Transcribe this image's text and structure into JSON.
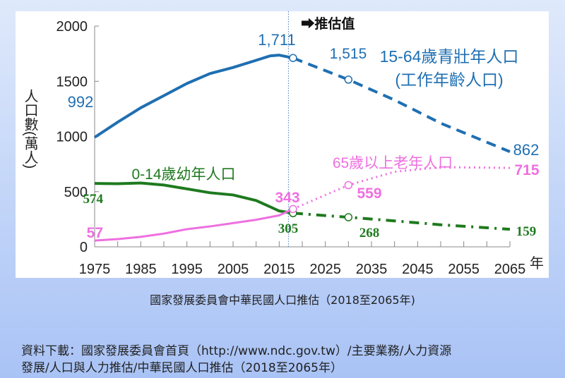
{
  "chart_data": {
    "type": "line",
    "title": "",
    "xlabel": "年",
    "ylabel": "人口數(萬人)",
    "xlim": [
      1975,
      2065
    ],
    "ylim": [
      0,
      2000
    ],
    "x_ticks": [
      "1975",
      "1985",
      "1995",
      "2005",
      "2015",
      "2025",
      "2035",
      "2045",
      "2055",
      "2065"
    ],
    "y_ticks": [
      "0",
      "500",
      "1000",
      "1500",
      "2000"
    ],
    "projection_start": 2017,
    "projection_label": "➡推估值",
    "series": [
      {
        "name": "15-64歲青壯年人口",
        "name2": "(工作年齡人口)",
        "color": "#1f6fb2",
        "x": [
          1975,
          1980,
          1985,
          1990,
          1995,
          2000,
          2005,
          2010,
          2013,
          2015,
          2018,
          2030,
          2040,
          2050,
          2065
        ],
        "y": [
          992,
          1130,
          1260,
          1370,
          1480,
          1570,
          1625,
          1690,
          1730,
          1737,
          1711,
          1515,
          1330,
          1120,
          862
        ],
        "labels": [
          {
            "year": 1975,
            "value": "992"
          },
          {
            "year": 2018,
            "value": "1,711"
          },
          {
            "year": 2030,
            "value": "1,515"
          },
          {
            "year": 2065,
            "value": "862"
          }
        ]
      },
      {
        "name": "0-14歲幼年人口",
        "color": "#1e7a1e",
        "x": [
          1975,
          1980,
          1985,
          1990,
          1995,
          2000,
          2005,
          2010,
          2015,
          2018,
          2030,
          2040,
          2050,
          2065
        ],
        "y": [
          574,
          572,
          578,
          560,
          525,
          490,
          470,
          420,
          325,
          305,
          268,
          235,
          200,
          159
        ],
        "labels": [
          {
            "year": 1975,
            "value": "574"
          },
          {
            "year": 2018,
            "value": "305"
          },
          {
            "year": 2030,
            "value": "268"
          },
          {
            "year": 2065,
            "value": "159"
          }
        ]
      },
      {
        "name": "65歲以上老年人口",
        "color": "#ee70e0",
        "x": [
          1975,
          1980,
          1985,
          1990,
          1995,
          2000,
          2005,
          2010,
          2015,
          2018,
          2030,
          2040,
          2050,
          2065
        ],
        "y": [
          57,
          70,
          90,
          120,
          160,
          185,
          215,
          245,
          285,
          343,
          559,
          680,
          722,
          715
        ],
        "labels": [
          {
            "year": 1975,
            "value": "57"
          },
          {
            "year": 2018,
            "value": "343"
          },
          {
            "year": 2030,
            "value": "559"
          },
          {
            "year": 2065,
            "value": "715"
          }
        ]
      }
    ]
  },
  "caption": "國家發展委員會中華民國人口推估（2018至2065年)",
  "source_line1": "資料下載：國家發展委員會首頁（http://www.ndc.gov.tw）/主要業務/人力資源",
  "source_line2": "發展/人口與人力推估/中華民國人口推估（2018至2065年）"
}
